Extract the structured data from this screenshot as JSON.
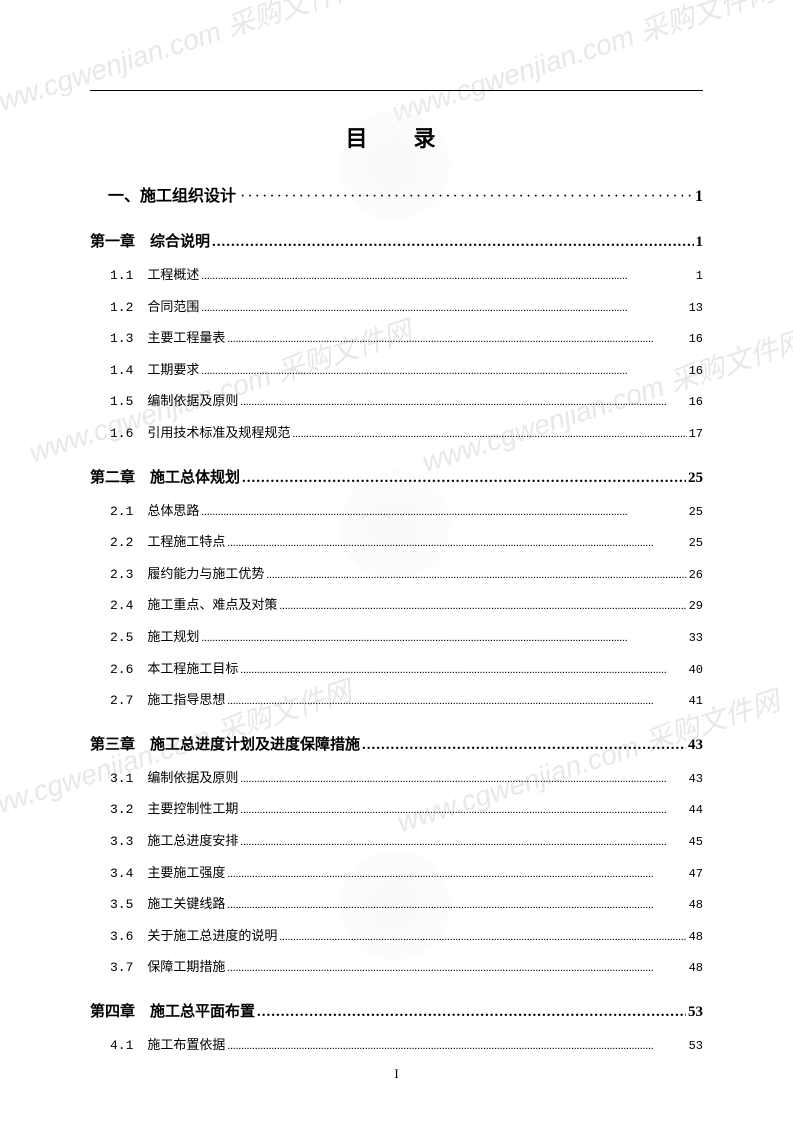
{
  "watermark_text": "www.cgwenjian.com 采购文件网",
  "title": "目　录",
  "page_number_label": "I",
  "dots_pattern_heavy": "·············································································",
  "dots_pattern_bold": ".............................................................................................................",
  "dots_pattern_light": "...........................................................................................................................................................",
  "toc": {
    "section1": {
      "label": "一、施工组织设计",
      "page": "1"
    },
    "chapter1": {
      "label": "第一章　综合说明",
      "page": "1",
      "items": [
        {
          "num": "1.1",
          "label": "工程概述",
          "page": "1"
        },
        {
          "num": "1.2",
          "label": "合同范围",
          "page": "13"
        },
        {
          "num": "1.3",
          "label": "主要工程量表",
          "page": "16"
        },
        {
          "num": "1.4",
          "label": "工期要求",
          "page": "16"
        },
        {
          "num": "1.5",
          "label": "编制依据及原则",
          "page": "16"
        },
        {
          "num": "1.6",
          "label": "引用技术标准及规程规范",
          "page": "17"
        }
      ]
    },
    "chapter2": {
      "label": "第二章　施工总体规划",
      "page": "25",
      "items": [
        {
          "num": "2.1",
          "label": "总体思路",
          "page": "25"
        },
        {
          "num": "2.2",
          "label": "工程施工特点",
          "page": "25"
        },
        {
          "num": "2.3",
          "label": "履约能力与施工优势",
          "page": "26"
        },
        {
          "num": "2.4",
          "label": "施工重点、难点及对策",
          "page": "29"
        },
        {
          "num": "2.5",
          "label": "施工规划",
          "page": "33"
        },
        {
          "num": "2.6",
          "label": "本工程施工目标",
          "page": "40"
        },
        {
          "num": "2.7",
          "label": "施工指导思想",
          "page": "41"
        }
      ]
    },
    "chapter3": {
      "label": "第三章　施工总进度计划及进度保障措施",
      "page": "43",
      "items": [
        {
          "num": "3.1",
          "label": "编制依据及原则",
          "page": "43"
        },
        {
          "num": "3.2",
          "label": "主要控制性工期",
          "page": "44"
        },
        {
          "num": "3.3",
          "label": "施工总进度安排",
          "page": "45"
        },
        {
          "num": "3.4",
          "label": "主要施工强度",
          "page": "47"
        },
        {
          "num": "3.5",
          "label": "施工关键线路",
          "page": "48"
        },
        {
          "num": "3.6",
          "label": "关于施工总进度的说明",
          "page": "48"
        },
        {
          "num": "3.7",
          "label": "保障工期措施",
          "page": "48"
        }
      ]
    },
    "chapter4": {
      "label": "第四章　施工总平面布置",
      "page": "53",
      "items": [
        {
          "num": "4.1",
          "label": "施工布置依据",
          "page": "53"
        }
      ]
    }
  },
  "colors": {
    "text": "#000000",
    "background": "#ffffff",
    "watermark": "#e8e8e8"
  }
}
